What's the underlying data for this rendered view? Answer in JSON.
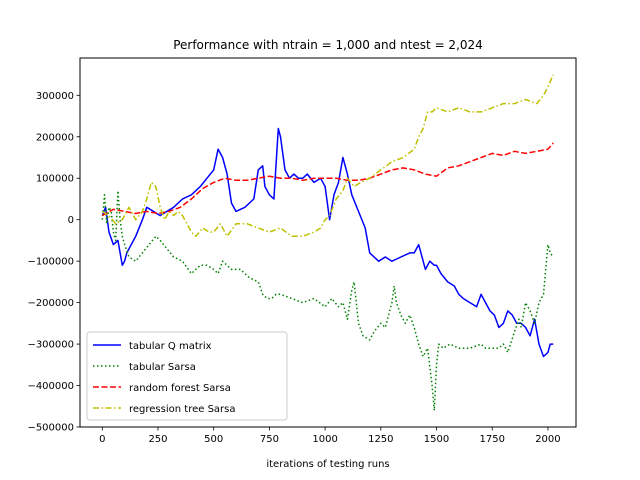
{
  "chart_data": {
    "type": "line",
    "title": "Performance with ntrain = 1,000 and ntest = 2,024",
    "xlabel": "iterations of testing runs",
    "ylabel": "",
    "xlim": [
      -100,
      2126
    ],
    "ylim": [
      -500000,
      390000
    ],
    "xticks": [
      0,
      250,
      500,
      750,
      1000,
      1250,
      1500,
      1750,
      2000
    ],
    "yticks": [
      -500000,
      -400000,
      -300000,
      -200000,
      -100000,
      0,
      100000,
      200000,
      300000
    ],
    "grid": false,
    "legend_position": "lower-left",
    "series": [
      {
        "name": "tabular Q matrix",
        "color": "#0000ff",
        "style": "solid",
        "x": [
          0,
          15,
          30,
          50,
          70,
          90,
          100,
          110,
          130,
          150,
          180,
          200,
          230,
          260,
          290,
          320,
          360,
          400,
          440,
          470,
          500,
          520,
          540,
          560,
          580,
          600,
          640,
          680,
          700,
          720,
          730,
          750,
          770,
          790,
          800,
          820,
          840,
          860,
          880,
          900,
          920,
          950,
          980,
          1000,
          1020,
          1040,
          1060,
          1080,
          1100,
          1120,
          1150,
          1180,
          1200,
          1240,
          1270,
          1300,
          1340,
          1380,
          1400,
          1420,
          1450,
          1470,
          1490,
          1500,
          1520,
          1550,
          1580,
          1600,
          1620,
          1650,
          1680,
          1700,
          1720,
          1740,
          1760,
          1780,
          1800,
          1820,
          1840,
          1860,
          1880,
          1900,
          1920,
          1940,
          1960,
          1980,
          2000,
          2010,
          2024
        ],
        "y": [
          10000,
          30000,
          -30000,
          -60000,
          -50000,
          -110000,
          -100000,
          -80000,
          -60000,
          -40000,
          0,
          30000,
          20000,
          10000,
          20000,
          30000,
          50000,
          60000,
          80000,
          100000,
          120000,
          170000,
          150000,
          110000,
          40000,
          20000,
          30000,
          50000,
          120000,
          130000,
          80000,
          60000,
          50000,
          220000,
          200000,
          120000,
          100000,
          110000,
          100000,
          100000,
          110000,
          90000,
          100000,
          80000,
          0,
          60000,
          90000,
          150000,
          110000,
          60000,
          20000,
          -20000,
          -80000,
          -100000,
          -90000,
          -100000,
          -90000,
          -80000,
          -80000,
          -60000,
          -120000,
          -100000,
          -110000,
          -110000,
          -130000,
          -150000,
          -160000,
          -180000,
          -190000,
          -200000,
          -210000,
          -180000,
          -200000,
          -220000,
          -230000,
          -260000,
          -250000,
          -220000,
          -230000,
          -250000,
          -250000,
          -260000,
          -280000,
          -240000,
          -300000,
          -330000,
          -320000,
          -300000,
          -300000
        ]
      },
      {
        "name": "tabular Sarsa",
        "color": "#008000",
        "style": "dotted",
        "x": [
          0,
          10,
          20,
          30,
          40,
          50,
          60,
          70,
          80,
          90,
          100,
          120,
          150,
          180,
          210,
          240,
          260,
          290,
          320,
          360,
          400,
          440,
          470,
          500,
          520,
          540,
          580,
          620,
          660,
          700,
          720,
          740,
          760,
          780,
          800,
          850,
          900,
          950,
          1000,
          1030,
          1060,
          1080,
          1100,
          1120,
          1130,
          1150,
          1170,
          1200,
          1220,
          1250,
          1270,
          1290,
          1300,
          1310,
          1320,
          1340,
          1360,
          1380,
          1400,
          1420,
          1440,
          1460,
          1480,
          1490,
          1500,
          1510,
          1530,
          1560,
          1600,
          1650,
          1700,
          1720,
          1750,
          1780,
          1800,
          1820,
          1850,
          1870,
          1880,
          1900,
          1920,
          1940,
          1960,
          1980,
          2000,
          2010,
          2024
        ],
        "y": [
          0,
          60000,
          -10000,
          30000,
          20000,
          -30000,
          -50000,
          70000,
          0,
          -40000,
          -60000,
          -90000,
          -100000,
          -80000,
          -60000,
          -40000,
          -50000,
          -70000,
          -90000,
          -100000,
          -130000,
          -110000,
          -110000,
          -120000,
          -130000,
          -100000,
          -120000,
          -120000,
          -140000,
          -150000,
          -180000,
          -190000,
          -190000,
          -180000,
          -180000,
          -190000,
          -200000,
          -190000,
          -210000,
          -190000,
          -210000,
          -200000,
          -240000,
          -170000,
          -150000,
          -250000,
          -280000,
          -290000,
          -270000,
          -250000,
          -260000,
          -220000,
          -200000,
          -160000,
          -200000,
          -230000,
          -250000,
          -230000,
          -260000,
          -300000,
          -330000,
          -310000,
          -400000,
          -460000,
          -350000,
          -300000,
          -310000,
          -300000,
          -310000,
          -310000,
          -300000,
          -310000,
          -310000,
          -310000,
          -300000,
          -320000,
          -270000,
          -240000,
          -260000,
          -200000,
          -220000,
          -250000,
          -200000,
          -180000,
          -60000,
          -80000,
          -90000
        ]
      },
      {
        "name": "random forest Sarsa",
        "color": "#ff0000",
        "style": "dashed",
        "x": [
          0,
          50,
          100,
          150,
          200,
          250,
          300,
          350,
          400,
          450,
          500,
          550,
          600,
          650,
          700,
          750,
          800,
          850,
          900,
          950,
          1000,
          1050,
          1100,
          1150,
          1200,
          1250,
          1300,
          1350,
          1400,
          1450,
          1500,
          1550,
          1600,
          1650,
          1700,
          1750,
          1800,
          1850,
          1900,
          1950,
          2000,
          2024
        ],
        "y": [
          10000,
          25000,
          20000,
          15000,
          20000,
          15000,
          20000,
          30000,
          50000,
          75000,
          90000,
          100000,
          95000,
          95000,
          100000,
          105000,
          100000,
          100000,
          95000,
          100000,
          100000,
          100000,
          95000,
          95000,
          100000,
          110000,
          120000,
          125000,
          120000,
          110000,
          105000,
          125000,
          130000,
          140000,
          150000,
          160000,
          155000,
          165000,
          160000,
          165000,
          170000,
          185000
        ]
      },
      {
        "name": "regression tree Sarsa",
        "color": "#bfbf00",
        "style": "dashdot",
        "x": [
          0,
          30,
          60,
          90,
          120,
          150,
          180,
          200,
          220,
          240,
          260,
          280,
          300,
          320,
          340,
          360,
          380,
          400,
          420,
          450,
          480,
          500,
          530,
          560,
          600,
          650,
          700,
          750,
          800,
          850,
          900,
          950,
          980,
          1000,
          1020,
          1050,
          1080,
          1100,
          1130,
          1160,
          1200,
          1250,
          1300,
          1350,
          1400,
          1420,
          1440,
          1460,
          1480,
          1500,
          1550,
          1600,
          1650,
          1700,
          1750,
          1800,
          1850,
          1900,
          1950,
          1980,
          2000,
          2024
        ],
        "y": [
          20000,
          10000,
          -10000,
          0,
          30000,
          0,
          20000,
          50000,
          90000,
          80000,
          30000,
          0,
          20000,
          10000,
          20000,
          10000,
          -10000,
          -30000,
          -40000,
          -20000,
          -30000,
          -30000,
          -10000,
          -40000,
          -10000,
          -10000,
          -20000,
          -30000,
          -20000,
          -40000,
          -40000,
          -30000,
          -20000,
          0,
          10000,
          50000,
          70000,
          100000,
          80000,
          90000,
          100000,
          120000,
          140000,
          150000,
          170000,
          200000,
          220000,
          260000,
          260000,
          270000,
          260000,
          270000,
          260000,
          260000,
          270000,
          280000,
          280000,
          290000,
          280000,
          300000,
          320000,
          350000
        ]
      }
    ]
  }
}
